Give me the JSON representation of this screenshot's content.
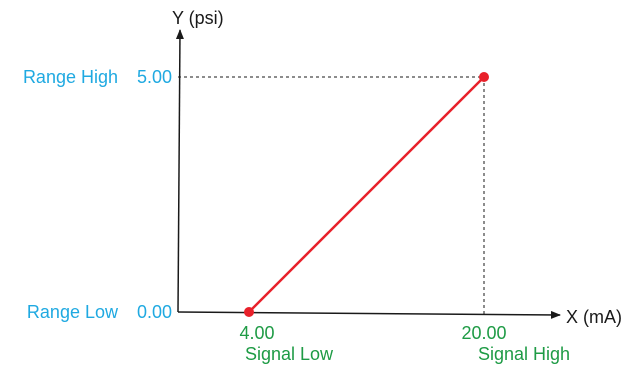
{
  "chart_data": {
    "type": "line",
    "title": "",
    "xlabel": "X (mA)",
    "ylabel": "Y (psi)",
    "series": [
      {
        "x": [
          4.0,
          20.0
        ],
        "y": [
          0.0,
          5.0
        ]
      }
    ],
    "x_ticks": [
      {
        "value": 4.0,
        "label": "4.00",
        "caption": "Signal Low"
      },
      {
        "value": 20.0,
        "label": "20.00",
        "caption": "Signal High"
      }
    ],
    "y_ticks": [
      {
        "value": 0.0,
        "label": "0.00",
        "caption": "Range Low"
      },
      {
        "value": 5.0,
        "label": "5.00",
        "caption": "Range High"
      }
    ],
    "grid": false,
    "legend": "none",
    "colors": {
      "line": "#e8202a",
      "point": "#e8202a",
      "axis": "#1a1a1a",
      "range_text": "#1fa9e1",
      "signal_text": "#1e9b45"
    }
  }
}
